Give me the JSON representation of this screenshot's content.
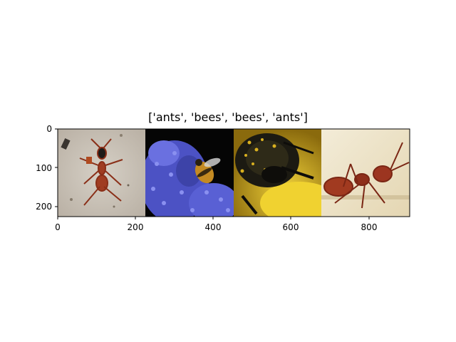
{
  "figure": {
    "title": "['ants', 'bees', 'bees', 'ants']"
  },
  "axes": {
    "x_ticks": [
      "0",
      "200",
      "400",
      "600",
      "800"
    ],
    "y_ticks": [
      "0",
      "100",
      "200"
    ]
  },
  "panels": [
    {
      "label": "ants",
      "scene": "red ant on sand"
    },
    {
      "label": "bees",
      "scene": "bee on blue flowers"
    },
    {
      "label": "bees",
      "scene": "close-up bee with pollen on yellow flower"
    },
    {
      "label": "ants",
      "scene": "red ant on cream background"
    }
  ],
  "colors": {
    "ant_body": "#9b3a22",
    "sand": "#c9c1b5",
    "flowers": "#5a5fd0",
    "yellow_flower": "#d9b417",
    "cream": "#efe6cf"
  }
}
